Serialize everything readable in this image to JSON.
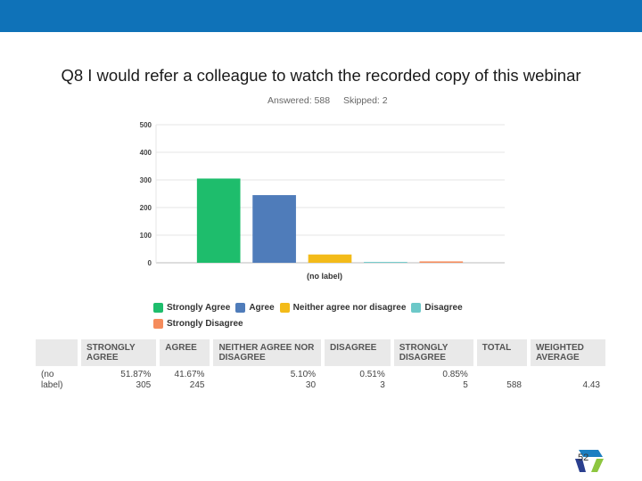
{
  "slide": {
    "title": "Q8 I would refer a colleague to watch the recorded copy of this webinar",
    "answered": "Answered: 588",
    "skipped": "Skipped: 2",
    "page_number": "52",
    "header_color": "#0f72b8"
  },
  "chart_data": {
    "type": "bar",
    "categories": [
      "(no label)"
    ],
    "xlabel": "(no label)",
    "ylabel": "",
    "ylim": [
      0,
      500
    ],
    "yticks": [
      0,
      100,
      200,
      300,
      400,
      500
    ],
    "grid": true,
    "series": [
      {
        "name": "Strongly Agree",
        "values": [
          305
        ],
        "color": "#1ebd6c"
      },
      {
        "name": "Agree",
        "values": [
          245
        ],
        "color": "#4f7cba"
      },
      {
        "name": "Neither agree nor disagree",
        "values": [
          30
        ],
        "color": "#f3bb19"
      },
      {
        "name": "Disagree",
        "values": [
          3
        ],
        "color": "#6cc8c8"
      },
      {
        "name": "Strongly Disagree",
        "values": [
          5
        ],
        "color": "#f58c5c"
      }
    ],
    "legend_position": "bottom"
  },
  "table": {
    "headers": [
      "",
      "STRONGLY AGREE",
      "AGREE",
      "NEITHER AGREE NOR DISAGREE",
      "DISAGREE",
      "STRONGLY DISAGREE",
      "TOTAL",
      "WEIGHTED AVERAGE"
    ],
    "rows": [
      {
        "label": "(no label)",
        "cells": [
          {
            "pct": "51.87%",
            "count": "305"
          },
          {
            "pct": "41.67%",
            "count": "245"
          },
          {
            "pct": "5.10%",
            "count": "30"
          },
          {
            "pct": "0.51%",
            "count": "3"
          },
          {
            "pct": "0.85%",
            "count": "5"
          }
        ],
        "total": "588",
        "weighted_average": "4.43"
      }
    ]
  }
}
